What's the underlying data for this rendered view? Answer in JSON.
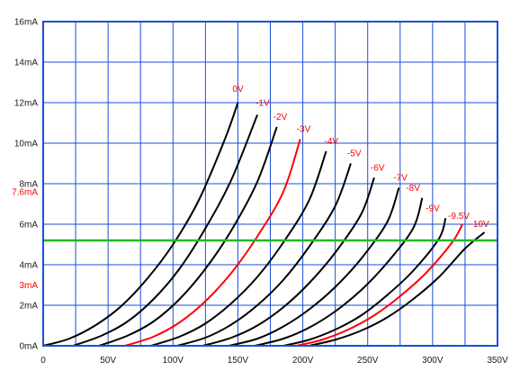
{
  "chart_data": {
    "type": "line",
    "title": "",
    "xlabel": "",
    "ylabel": "",
    "xlim": [
      0,
      350
    ],
    "ylim": [
      0,
      16
    ],
    "grid": true,
    "x_ticks": [
      0,
      25,
      50,
      75,
      100,
      125,
      150,
      175,
      200,
      225,
      250,
      275,
      300,
      325,
      350
    ],
    "x_tick_labels": [
      "0",
      "",
      "50V",
      "",
      "100V",
      "",
      "150V",
      "",
      "200V",
      "",
      "250V",
      "",
      "300V",
      "",
      "350V"
    ],
    "y_ticks": [
      0,
      2,
      4,
      6,
      8,
      10,
      12,
      14,
      16
    ],
    "y_tick_labels": [
      "0mA",
      "2mA",
      "4mA",
      "6mA",
      "8mA",
      "10mA",
      "12mA",
      "14mA",
      "16mA"
    ],
    "highlight_y_labels": [
      {
        "value": 7.6,
        "label": "7.6mA"
      },
      {
        "value": 3,
        "label": "3mA"
      }
    ],
    "load_line": {
      "y": 5.2,
      "color": "#22bb22"
    },
    "colors": {
      "default": "#000000",
      "highlight": "#ff0000",
      "grid": "#1a4fd8",
      "plot_background": "#ffffff"
    },
    "series": [
      {
        "name": "0V",
        "x": [
          0,
          20,
          40,
          60,
          80,
          100,
          120,
          140,
          150
        ],
        "y": [
          0,
          0.35,
          1.0,
          1.95,
          3.3,
          5.0,
          7.2,
          10.2,
          12.0
        ]
      },
      {
        "name": "-1V",
        "x": [
          23,
          45,
          65,
          85,
          105,
          125,
          145,
          165
        ],
        "y": [
          0,
          0.5,
          1.2,
          2.3,
          3.8,
          5.8,
          8.2,
          11.4
        ]
      },
      {
        "name": "-2V",
        "x": [
          43,
          65,
          85,
          105,
          125,
          145,
          165,
          180
        ],
        "y": [
          0,
          0.5,
          1.2,
          2.3,
          3.8,
          5.7,
          8.1,
          10.8
        ]
      },
      {
        "name": "-3V",
        "x": [
          63,
          85,
          105,
          125,
          145,
          165,
          185,
          198
        ],
        "y": [
          0,
          0.45,
          1.15,
          2.2,
          3.6,
          5.4,
          7.6,
          10.2
        ]
      },
      {
        "name": "-4V",
        "x": [
          83,
          105,
          125,
          145,
          165,
          185,
          205,
          218
        ],
        "y": [
          0,
          0.45,
          1.1,
          2.1,
          3.4,
          5.1,
          7.2,
          9.6
        ]
      },
      {
        "name": "-5V",
        "x": [
          103,
          125,
          145,
          165,
          185,
          205,
          225,
          237
        ],
        "y": [
          0,
          0.4,
          1.05,
          2.0,
          3.25,
          4.9,
          6.9,
          9.0
        ]
      },
      {
        "name": "-6V",
        "x": [
          123,
          145,
          165,
          185,
          205,
          225,
          245,
          255
        ],
        "y": [
          0,
          0.4,
          1.0,
          1.9,
          3.1,
          4.6,
          6.5,
          8.3
        ]
      },
      {
        "name": "-7V",
        "x": [
          143,
          165,
          185,
          205,
          225,
          245,
          265,
          274
        ],
        "y": [
          0,
          0.35,
          0.95,
          1.8,
          2.9,
          4.3,
          6.1,
          7.8
        ]
      },
      {
        "name": "-8V",
        "x": [
          163,
          185,
          205,
          225,
          245,
          265,
          285,
          292
        ],
        "y": [
          0,
          0.35,
          0.9,
          1.7,
          2.75,
          4.1,
          5.8,
          7.3
        ]
      },
      {
        "name": "-9V",
        "x": [
          185,
          205,
          225,
          245,
          265,
          285,
          305,
          310
        ],
        "y": [
          0,
          0.3,
          0.8,
          1.5,
          2.5,
          3.7,
          5.3,
          6.3
        ]
      },
      {
        "name": "-9.5V",
        "x": [
          195,
          215,
          235,
          255,
          275,
          295,
          315,
          323
        ],
        "y": [
          0,
          0.3,
          0.8,
          1.5,
          2.45,
          3.6,
          5.1,
          6.0
        ]
      },
      {
        "name": "-10V",
        "x": [
          205,
          225,
          245,
          265,
          285,
          305,
          325,
          340
        ],
        "y": [
          0,
          0.3,
          0.75,
          1.4,
          2.3,
          3.4,
          4.8,
          5.6
        ]
      }
    ],
    "highlighted_series": [
      "-3V",
      "-9.5V"
    ]
  }
}
